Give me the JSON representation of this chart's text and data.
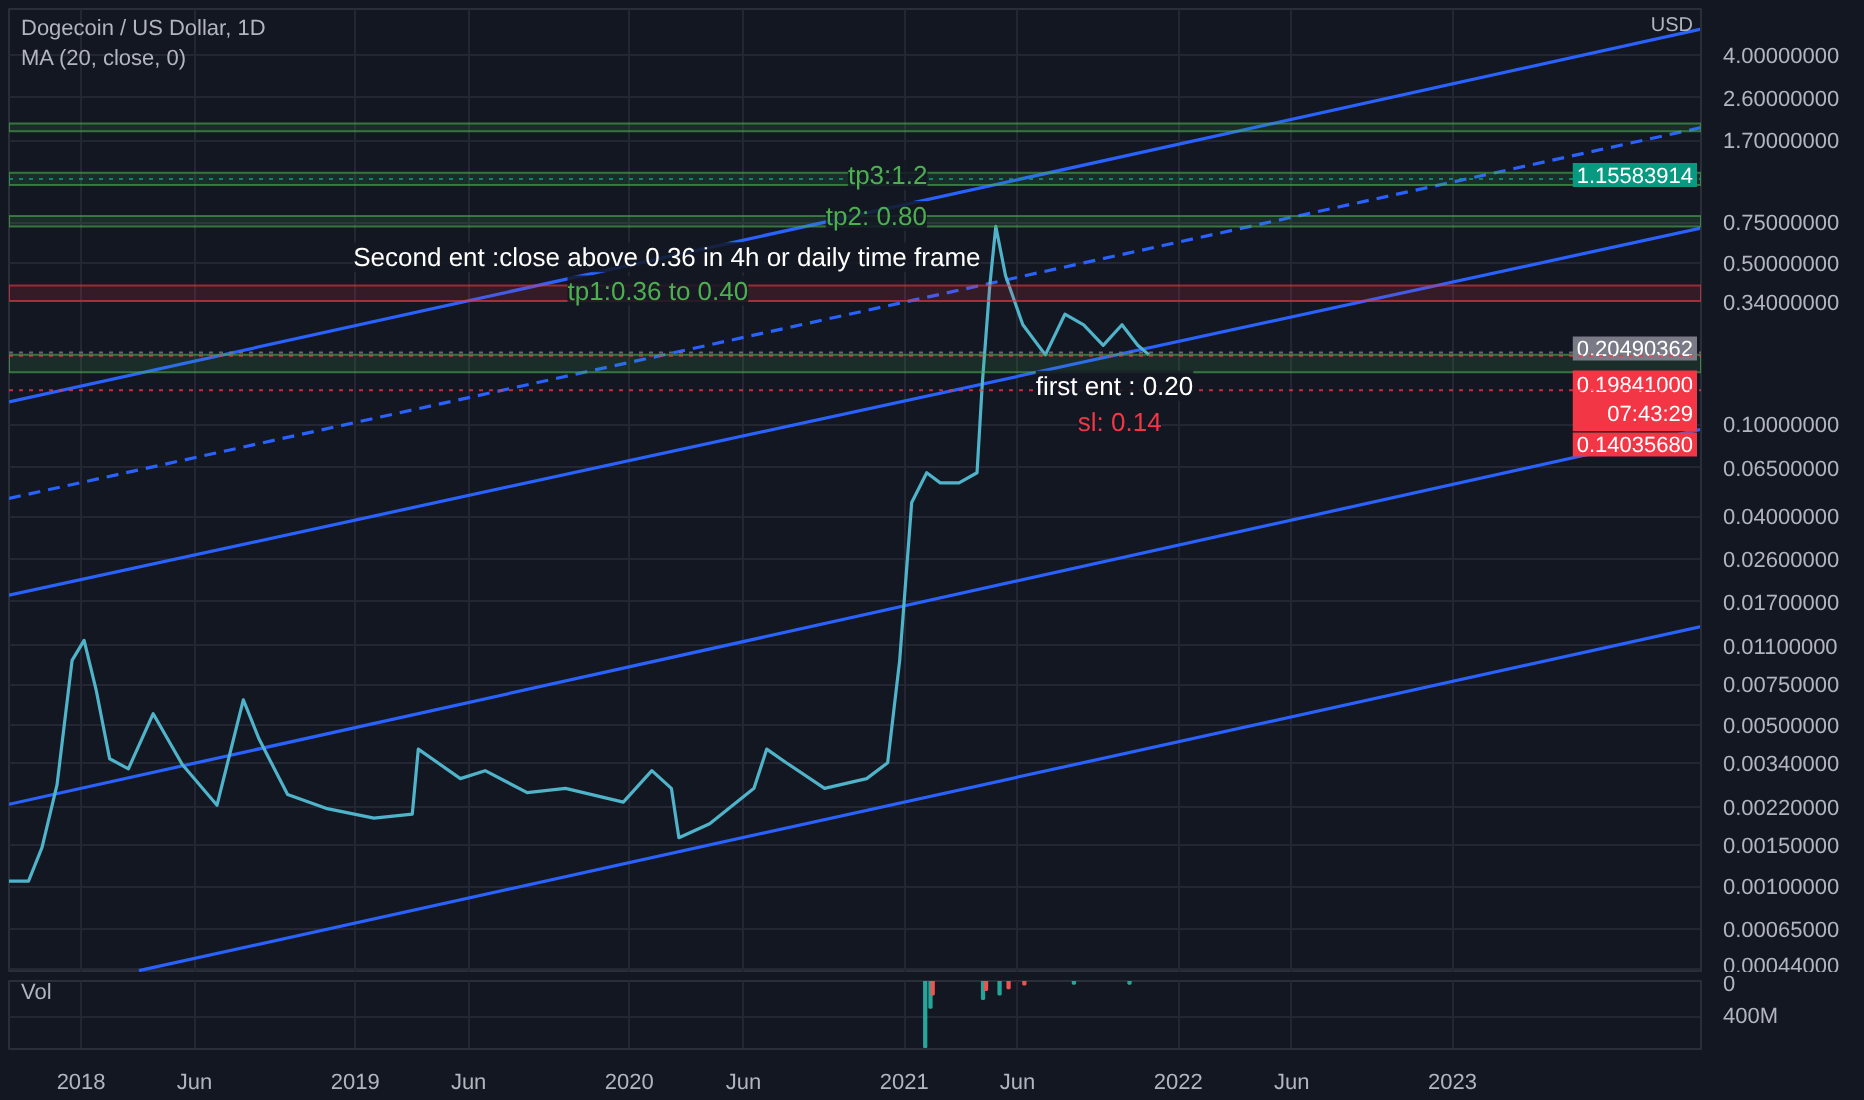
{
  "chart_data": [
    {
      "type": "line",
      "title": "Dogecoin / US Dollar, 1D",
      "subtitle": "MA (20, close, 0)",
      "log": true,
      "grid": true,
      "tick_labels": "y",
      "xlim": [
        "2017-09-27",
        "2023-11-28"
      ],
      "ylim": [
        0.00042,
        6.3
      ],
      "xticks": [
        {
          "value": "2018-01-01",
          "label": null
        },
        {
          "value": "2018-06-01",
          "label": null
        },
        {
          "value": "2019-01-01",
          "label": null
        },
        {
          "value": "2019-06-01",
          "label": null
        },
        {
          "value": "2020-01-01",
          "label": null
        },
        {
          "value": "2020-06-01",
          "label": null
        },
        {
          "value": "2021-01-01",
          "label": null
        },
        {
          "value": "2021-06-01",
          "label": null
        },
        {
          "value": "2022-01-01",
          "label": null
        },
        {
          "value": "2022-06-01",
          "label": null
        },
        {
          "value": "2023-01-01",
          "label": null
        }
      ],
      "yticks": [
        {
          "value": 0.00044,
          "label": "0.00044000"
        },
        {
          "value": 0.00065,
          "label": "0.00065000"
        },
        {
          "value": 0.001,
          "label": "0.00100000"
        },
        {
          "value": 0.0015,
          "label": "0.00150000"
        },
        {
          "value": 0.0022,
          "label": "0.00220000"
        },
        {
          "value": 0.0034,
          "label": "0.00340000"
        },
        {
          "value": 0.005,
          "label": "0.00500000"
        },
        {
          "value": 0.0075,
          "label": "0.00750000"
        },
        {
          "value": 0.011,
          "label": "0.01100000"
        },
        {
          "value": 0.017,
          "label": "0.01700000"
        },
        {
          "value": 0.026,
          "label": "0.02600000"
        },
        {
          "value": 0.04,
          "label": "0.04000000"
        },
        {
          "value": 0.065,
          "label": "0.06500000"
        },
        {
          "value": 0.1,
          "label": "0.10000000"
        },
        {
          "value": 0.34,
          "label": "0.34000000"
        },
        {
          "value": 0.5,
          "label": "0.50000000"
        },
        {
          "value": 0.75,
          "label": "0.75000000"
        },
        {
          "value": 1.7,
          "label": "1.70000000"
        },
        {
          "value": 2.6,
          "label": "2.60000000"
        },
        {
          "value": 4.0,
          "label": "4.00000000"
        }
      ],
      "series": [
        {
          "type": "line",
          "color": "#2962ff",
          "line_style": "solid",
          "x": [
            "2017-09-27",
            "2023-11-28"
          ],
          "values": [
            0.125,
            5.16
          ]
        },
        {
          "type": "line",
          "color": "#2962ff",
          "line_style": "dashed",
          "x": [
            "2017-09-27",
            "2023-11-28"
          ],
          "values": [
            0.0478,
            1.93
          ]
        },
        {
          "type": "line",
          "color": "#2962ff",
          "line_style": "solid",
          "x": [
            "2017-09-27",
            "2023-11-28"
          ],
          "values": [
            0.0182,
            0.708
          ]
        },
        {
          "type": "line",
          "color": "#2962ff",
          "line_style": "solid",
          "x": [
            "2017-09-27",
            "2023-11-28"
          ],
          "values": [
            0.00226,
            0.0951
          ]
        },
        {
          "type": "line",
          "color": "#2962ff",
          "line_style": "solid",
          "x": [
            "2018-03-19",
            "2023-11-28"
          ],
          "values": [
            0.00043,
            0.0133
          ]
        },
        {
          "type": "line",
          "color": "#4fb3c9",
          "line_style": "solid",
          "x": [
            "2017-09-27",
            "2017-10-23",
            "2017-11-10",
            "2017-11-30",
            "2017-12-20",
            "2018-01-05",
            "2018-01-21",
            "2018-02-08",
            "2018-03-05",
            "2018-04-07",
            "2018-05-16",
            "2018-07-01",
            "2018-08-05",
            "2018-08-26",
            "2018-10-03",
            "2018-11-23",
            "2019-01-26",
            "2019-03-18",
            "2019-03-26",
            "2019-05-21",
            "2019-06-23",
            "2019-08-18",
            "2019-10-08",
            "2019-12-24",
            "2020-01-31",
            "2020-02-26",
            "2020-03-07",
            "2020-04-17",
            "2020-06-15",
            "2020-07-02",
            "2020-07-28",
            "2020-09-17",
            "2020-11-12",
            "2020-12-10",
            "2020-12-26",
            "2021-01-03",
            "2021-01-11",
            "2021-01-31",
            "2021-02-18",
            "2021-03-15",
            "2021-04-08",
            "2021-04-15",
            "2021-04-25",
            "2021-05-03",
            "2021-05-16",
            "2021-06-08",
            "2021-07-08",
            "2021-08-03",
            "2021-08-28",
            "2021-09-23",
            "2021-10-18",
            "2021-11-08",
            "2021-11-23"
          ],
          "values": [
            0.00105,
            0.00105,
            0.00147,
            0.00275,
            0.0095,
            0.0116,
            0.00708,
            0.00356,
            0.00322,
            0.00558,
            0.00335,
            0.00224,
            0.00641,
            0.00433,
            0.00249,
            0.00217,
            0.00197,
            0.00205,
            0.00392,
            0.00292,
            0.00316,
            0.00254,
            0.00265,
            0.00231,
            0.00316,
            0.00265,
            0.00162,
            0.00186,
            0.00265,
            0.00392,
            0.00342,
            0.00265,
            0.00292,
            0.00342,
            0.0095,
            0.0209,
            0.0459,
            0.0617,
            0.0558,
            0.0558,
            0.0617,
            0.15,
            0.4,
            0.72,
            0.44,
            0.27,
            0.2,
            0.3,
            0.27,
            0.22,
            0.27,
            0.22,
            0.2
          ]
        }
      ],
      "bands": [
        {
          "axis": "y",
          "from": 1.86,
          "to": 2.01,
          "color": "#4caf50"
        },
        {
          "axis": "y",
          "from": 1.09,
          "to": 1.23,
          "color": "#4caf50"
        },
        {
          "axis": "y",
          "from": 0.72,
          "to": 0.8,
          "color": "#4caf50"
        },
        {
          "axis": "y",
          "from": 0.342,
          "to": 0.4,
          "color": "#f23645"
        },
        {
          "axis": "y",
          "from": 0.168,
          "to": 0.2,
          "color": "#4caf50"
        }
      ],
      "ref_lines": [
        {
          "axis": "y",
          "value": 1.15583914,
          "label": "1.15583914",
          "color": "#089981"
        },
        {
          "axis": "y",
          "value": 0.20490362,
          "label": "0.20490362",
          "color": "#787b86"
        },
        {
          "axis": "y",
          "value": 0.19841,
          "label": "0.19841000\n07:43:29",
          "color": "#f23645",
          "line_style": "dotted"
        },
        {
          "axis": "y",
          "value": 0.1403568,
          "label": "0.14035680",
          "color": "#f23645"
        }
      ],
      "annotations": [
        {
          "text": "tp3:1.2",
          "x": "2020-12-10",
          "y": 1.2
        },
        {
          "text": "tp2: 0.80",
          "x": "2020-11-25",
          "y": 0.8
        },
        {
          "text": "Second ent :close above 0.36 in 4h or daily time frame",
          "x": "2020-02-20",
          "y": 0.53
        },
        {
          "text": "tp1:0.36 to 0.40",
          "x": "2020-02-08",
          "y": 0.38
        },
        {
          "text": "first ent : 0.20",
          "x": "2021-10-08",
          "y": 0.2
        },
        {
          "text": "sl: 0.14",
          "x": "2021-10-15",
          "y": 0.14
        },
        "USD"
      ]
    },
    {
      "type": "bar",
      "title": "Vol",
      "xlim": [
        "2017-09-27",
        "2023-11-28"
      ],
      "ylim": [
        760000000,
        0
      ],
      "xticks": [
        {
          "value": "2018-01-01",
          "label": "2018"
        },
        {
          "value": "2018-06-01",
          "label": "Jun"
        },
        {
          "value": "2019-01-01",
          "label": "2019"
        },
        {
          "value": "2019-06-01",
          "label": "Jun"
        },
        {
          "value": "2020-01-01",
          "label": "2020"
        },
        {
          "value": "2020-06-01",
          "label": "Jun"
        },
        {
          "value": "2021-01-01",
          "label": "2021"
        },
        {
          "value": "2021-06-01",
          "label": "Jun"
        },
        {
          "value": "2022-01-01",
          "label": "2022"
        },
        {
          "value": "2022-06-01",
          "label": "Jun"
        },
        {
          "value": "2023-01-01",
          "label": "2023"
        }
      ],
      "yticks": [
        0,
        {
          "value": 400000000,
          "label": "400M"
        }
      ],
      "grid": true,
      "x": [
        "2021-01-29",
        "2021-02-05",
        "2021-02-08",
        "2021-04-16",
        "2021-04-20",
        "2021-05-08",
        "2021-05-20",
        "2021-06-10",
        "2021-08-15",
        "2021-10-28"
      ],
      "colors": [
        "#26a69a",
        "#26a69a",
        "#ef5350",
        "#26a69a",
        "#ef5350",
        "#26a69a",
        "#ef5350",
        "#ef5350",
        "#26a69a",
        "#26a69a"
      ],
      "values": [
        740000000,
        300000000,
        150000000,
        200000000,
        100000000,
        150000000,
        80000000,
        40000000,
        30000000,
        30000000
      ]
    }
  ]
}
